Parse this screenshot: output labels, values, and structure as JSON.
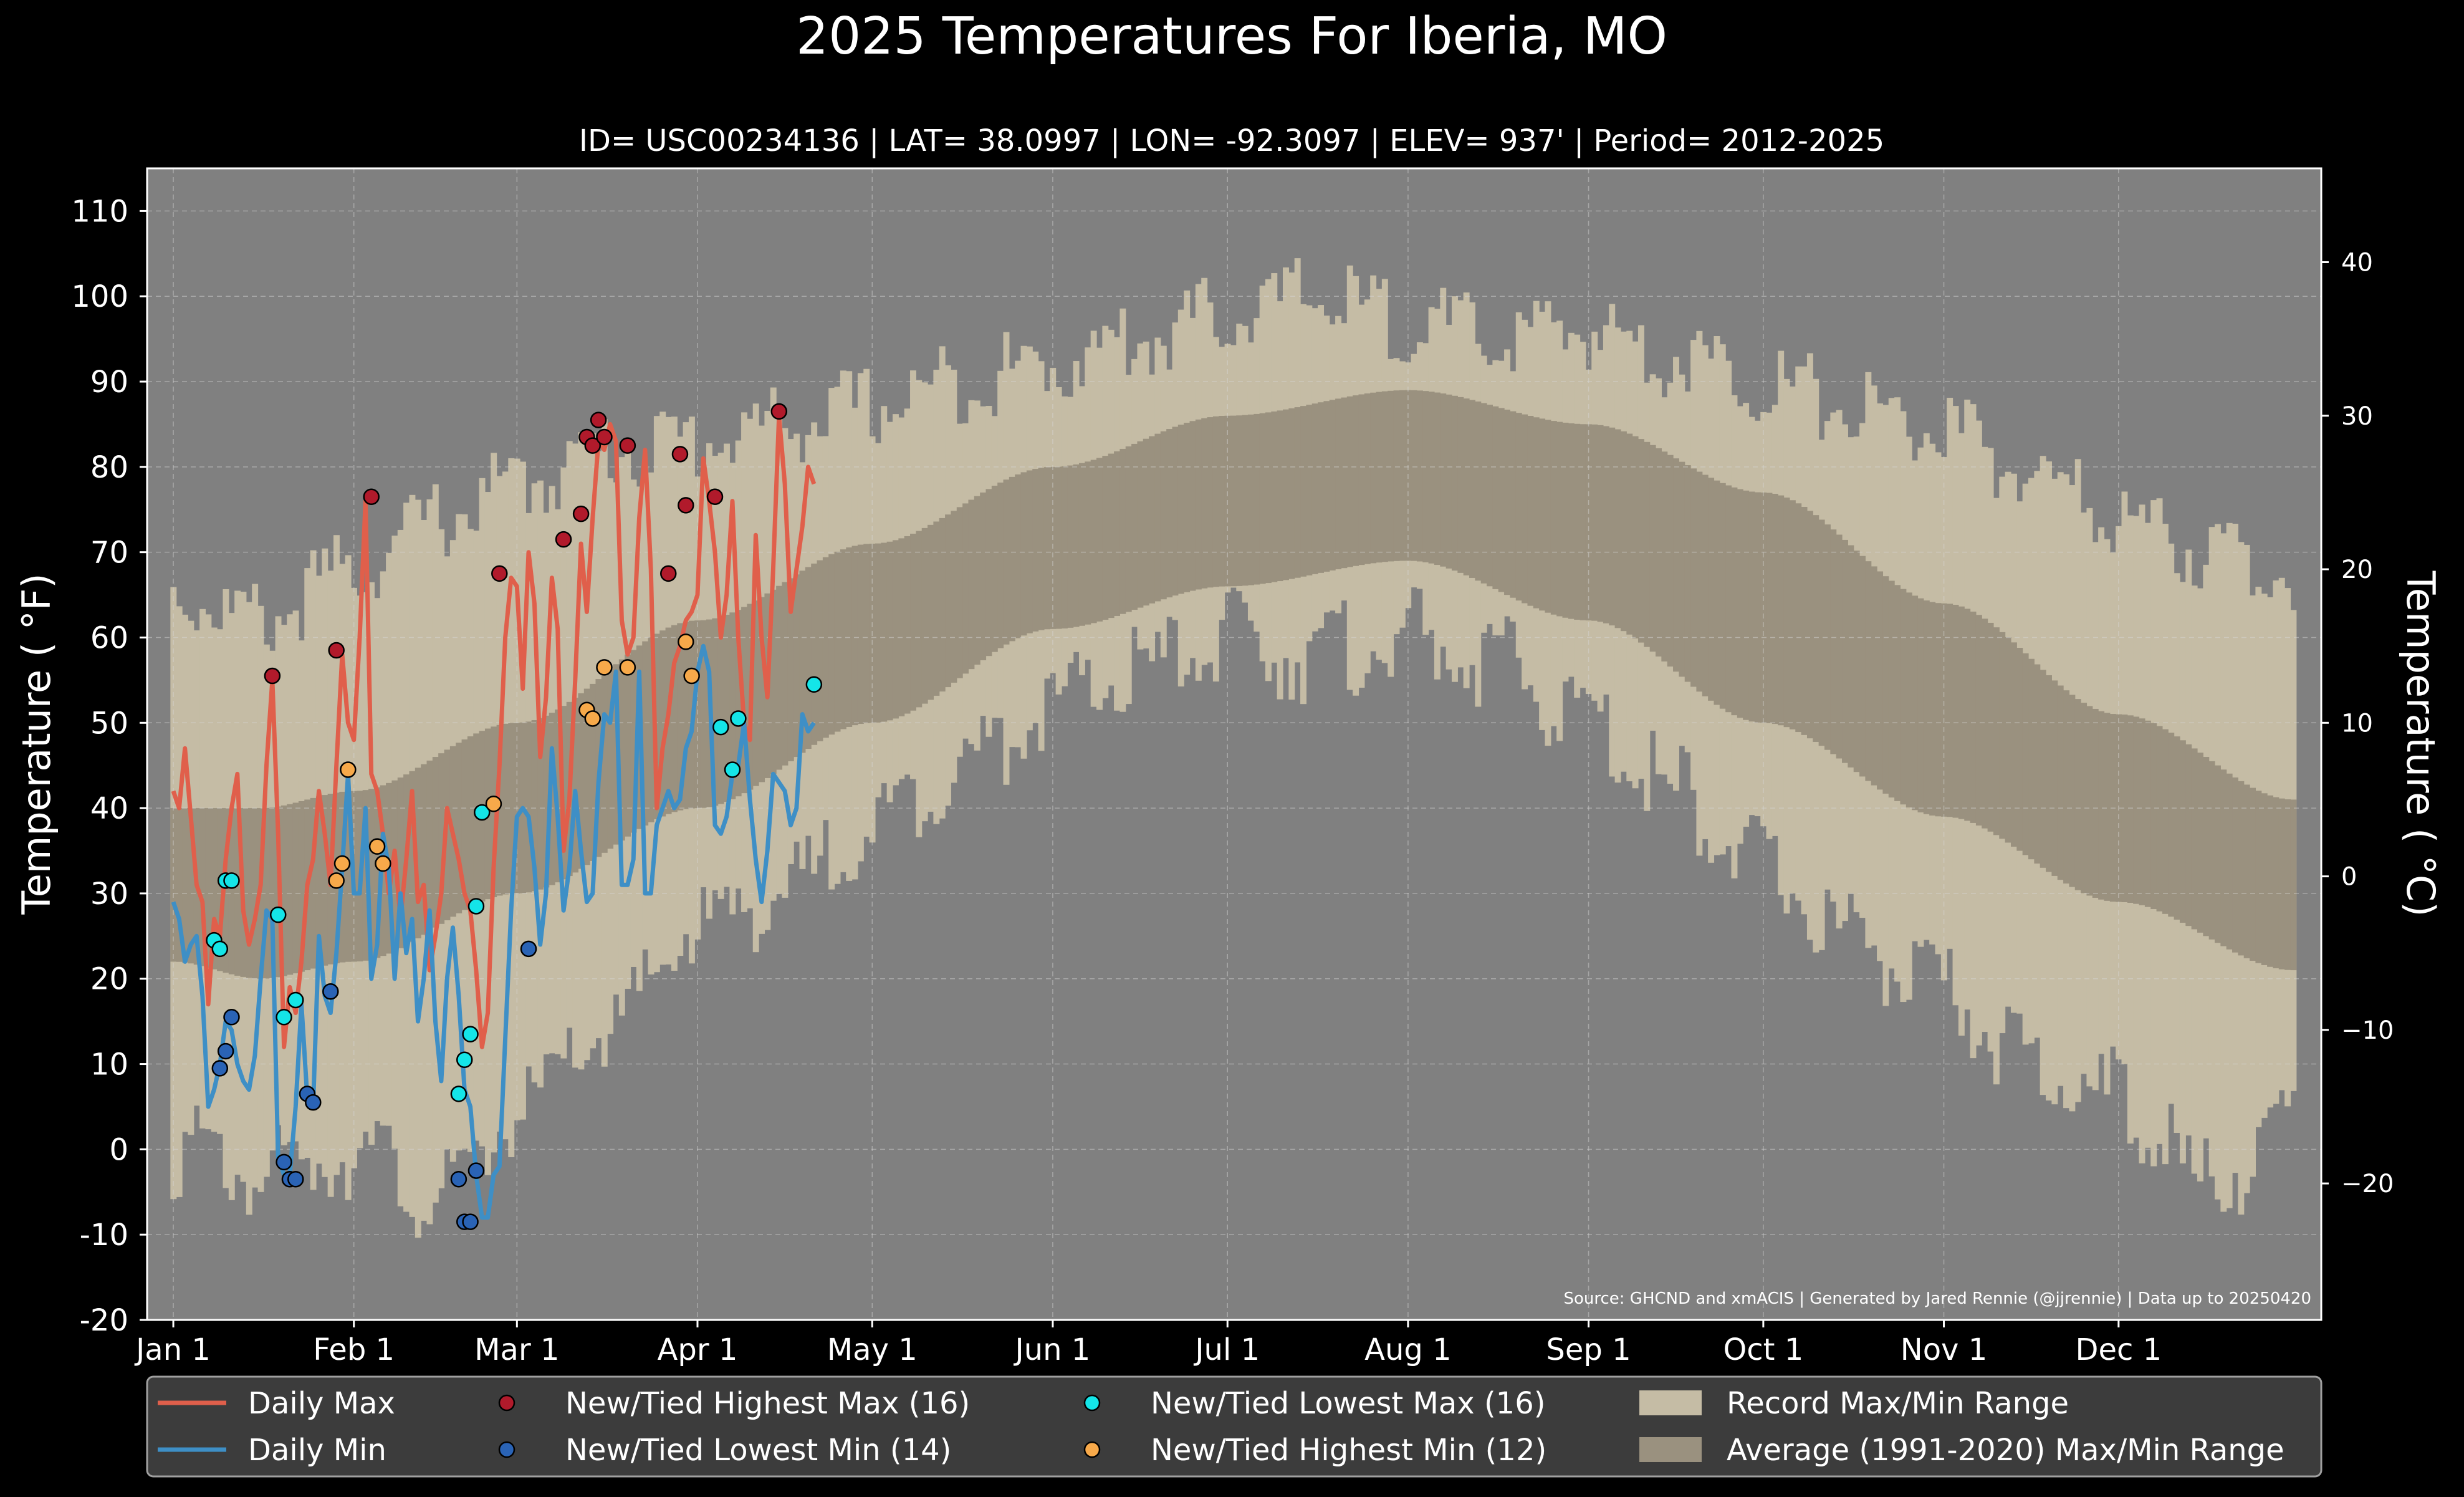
{
  "chart_data": {
    "type": "line",
    "title": "2025 Temperatures For Iberia, MO",
    "subtitle": "ID= USC00234136 | LAT= 38.0997 | LON= -92.3097 | ELEV= 937' | Period= 2012-2025",
    "ylabel_left": "Temperature ( °F)",
    "ylabel_right": "Temperature ( °C)",
    "source": "Source: GHCND and xmACIS | Generated by Jared Rennie (@jjrennie) | Data up to 20250420",
    "x_unit": "day of year (2025)",
    "xlim": [
      -4.5,
      368.8
    ],
    "ylim_f": [
      -20,
      115
    ],
    "yticks_f": [
      -20,
      -10,
      0,
      10,
      20,
      30,
      40,
      50,
      60,
      70,
      80,
      90,
      100,
      110
    ],
    "yticks_c": [
      -20,
      -10,
      0,
      10,
      20,
      30,
      40
    ],
    "xticks": [
      {
        "label": "Jan 1",
        "day": 0
      },
      {
        "label": "Feb 1",
        "day": 31
      },
      {
        "label": "Mar 1",
        "day": 59
      },
      {
        "label": "Apr 1",
        "day": 90
      },
      {
        "label": "May 1",
        "day": 120
      },
      {
        "label": "Jun 1",
        "day": 151
      },
      {
        "label": "Jul 1",
        "day": 181
      },
      {
        "label": "Aug 1",
        "day": 212
      },
      {
        "label": "Sep 1",
        "day": 243
      },
      {
        "label": "Oct 1",
        "day": 273
      },
      {
        "label": "Nov 1",
        "day": 304
      },
      {
        "label": "Dec 1",
        "day": 334
      }
    ],
    "grid": true,
    "legend_position": "bottom",
    "colors": {
      "background": "#000000",
      "plot_bg": "#808080",
      "record_band": "#c5bca5",
      "normal_band": "#9a917f",
      "daily_max": "#e05f4b",
      "daily_min": "#3e8fc6",
      "new_highest_max": "#b11a2b",
      "new_lowest_min": "#2a63b5",
      "new_lowest_max": "#14e5e8",
      "new_highest_min": "#f7a94a"
    },
    "legend": [
      {
        "key": "daily_max",
        "label": "Daily Max",
        "kind": "line"
      },
      {
        "key": "daily_min",
        "label": "Daily Min",
        "kind": "line"
      },
      {
        "key": "new_highest_max",
        "label": "New/Tied Highest Max (16)",
        "kind": "dot"
      },
      {
        "key": "new_lowest_min",
        "label": "New/Tied Lowest Min (14)",
        "kind": "dot"
      },
      {
        "key": "new_lowest_max",
        "label": "New/Tied Lowest Max (16)",
        "kind": "dot"
      },
      {
        "key": "new_highest_min",
        "label": "New/Tied Highest Min (12)",
        "kind": "dot"
      },
      {
        "key": "record_band",
        "label": "Record Max/Min Range",
        "kind": "box"
      },
      {
        "key": "normal_band",
        "label": "Average (1991-2020) Max/Min Range",
        "kind": "box"
      }
    ],
    "normals_max_knots": {
      "day": [
        0,
        15,
        31,
        59,
        90,
        120,
        151,
        181,
        212,
        243,
        273,
        304,
        334,
        364
      ],
      "value": [
        40,
        40,
        42,
        50,
        62,
        71,
        80,
        86,
        89,
        85,
        77,
        64,
        51,
        41
      ]
    },
    "normals_min_knots": {
      "day": [
        0,
        15,
        31,
        59,
        90,
        120,
        151,
        181,
        212,
        243,
        273,
        304,
        334,
        364
      ],
      "value": [
        22,
        20,
        22,
        30,
        40,
        50,
        61,
        66,
        69,
        62,
        50,
        39,
        29,
        21
      ]
    },
    "record_max_knots": {
      "day": [
        0,
        15,
        31,
        46,
        59,
        75,
        90,
        105,
        120,
        135,
        151,
        166,
        181,
        196,
        212,
        227,
        243,
        258,
        273,
        288,
        304,
        319,
        334,
        349,
        364
      ],
      "value": [
        65,
        62,
        68,
        74,
        78,
        82,
        83,
        85,
        87,
        90,
        92,
        95,
        98,
        100,
        97,
        95,
        96,
        93,
        90,
        87,
        84,
        79,
        74,
        70,
        68
      ]
    },
    "record_min_knots": {
      "day": [
        0,
        15,
        31,
        46,
        59,
        75,
        90,
        105,
        120,
        135,
        151,
        166,
        181,
        196,
        212,
        227,
        243,
        258,
        273,
        288,
        304,
        319,
        334,
        349,
        364
      ],
      "value": [
        0,
        -3,
        0,
        -6,
        4,
        14,
        26,
        30,
        38,
        45,
        52,
        56,
        60,
        58,
        60,
        57,
        50,
        42,
        33,
        25,
        18,
        10,
        6,
        -4,
        2
      ]
    },
    "daily_max": [
      42,
      40,
      47,
      39,
      31,
      29,
      17,
      27,
      25,
      34,
      40,
      44,
      28,
      24,
      27,
      31,
      45,
      55,
      37,
      12,
      19,
      16,
      22,
      31,
      34,
      42,
      37,
      31,
      45,
      58,
      50,
      48,
      60,
      76,
      44,
      42,
      37,
      30,
      35,
      27,
      34,
      42,
      29,
      31,
      21,
      25,
      30,
      40,
      37,
      34,
      30,
      28,
      21,
      12,
      16,
      33,
      45,
      60,
      67,
      66,
      54,
      70,
      64,
      46,
      53,
      67,
      61,
      35,
      41,
      55,
      71,
      63,
      74,
      83,
      82,
      85,
      83,
      62,
      58,
      60,
      74,
      82,
      68,
      40,
      47,
      51,
      57,
      59,
      62,
      63,
      65,
      81,
      76,
      70,
      60,
      65,
      76,
      60,
      50,
      48,
      72,
      60,
      53,
      68,
      86,
      78,
      63,
      68,
      73,
      80,
      78
    ],
    "daily_min": [
      29,
      27,
      22,
      24,
      25,
      18,
      5,
      7,
      10,
      15,
      14,
      10,
      8,
      7,
      11,
      20,
      28,
      27,
      -1,
      -3,
      -3,
      5,
      17,
      6,
      5,
      25,
      18,
      16,
      23,
      33,
      44,
      30,
      30,
      40,
      20,
      24,
      37,
      33,
      20,
      30,
      23,
      27,
      15,
      20,
      28,
      15,
      8,
      20,
      26,
      18,
      7,
      5,
      -3,
      -8,
      -8,
      -3,
      -2,
      13,
      28,
      39,
      40,
      39,
      33,
      24,
      30,
      47,
      39,
      28,
      33,
      42,
      35,
      29,
      30,
      43,
      51,
      50,
      56,
      31,
      31,
      34,
      56,
      30,
      30,
      38,
      40,
      42,
      40,
      41,
      47,
      49,
      56,
      59,
      56,
      38,
      37,
      39,
      44,
      45,
      50,
      41,
      34,
      29,
      35,
      44,
      43,
      42,
      38,
      40,
      51,
      49,
      50
    ],
    "new_highest_max": [
      {
        "day": 17,
        "value": 55.5
      },
      {
        "day": 28,
        "value": 58.5
      },
      {
        "day": 34,
        "value": 76.5
      },
      {
        "day": 56,
        "value": 67.5
      },
      {
        "day": 67,
        "value": 71.5
      },
      {
        "day": 70,
        "value": 74.5
      },
      {
        "day": 71,
        "value": 83.5
      },
      {
        "day": 72,
        "value": 82.5
      },
      {
        "day": 73,
        "value": 85.5
      },
      {
        "day": 74,
        "value": 83.5
      },
      {
        "day": 78,
        "value": 82.5
      },
      {
        "day": 85,
        "value": 67.5
      },
      {
        "day": 87,
        "value": 81.5
      },
      {
        "day": 88,
        "value": 75.5
      },
      {
        "day": 93,
        "value": 76.5
      },
      {
        "day": 104,
        "value": 86.5
      }
    ],
    "new_lowest_min": [
      {
        "day": 8,
        "value": 9.5
      },
      {
        "day": 9,
        "value": 11.5
      },
      {
        "day": 10,
        "value": 15.5
      },
      {
        "day": 19,
        "value": -1.5
      },
      {
        "day": 20,
        "value": -3.5
      },
      {
        "day": 21,
        "value": -3.5
      },
      {
        "day": 23,
        "value": 6.5
      },
      {
        "day": 24,
        "value": 5.5
      },
      {
        "day": 27,
        "value": 18.5
      },
      {
        "day": 49,
        "value": -3.5
      },
      {
        "day": 50,
        "value": -8.5
      },
      {
        "day": 51,
        "value": -8.5
      },
      {
        "day": 52,
        "value": -2.5
      },
      {
        "day": 61,
        "value": 23.5
      }
    ],
    "new_lowest_max": [
      {
        "day": 7,
        "value": 24.5
      },
      {
        "day": 8,
        "value": 23.5
      },
      {
        "day": 9,
        "value": 31.5
      },
      {
        "day": 10,
        "value": 31.5
      },
      {
        "day": 18,
        "value": 27.5
      },
      {
        "day": 19,
        "value": 15.5
      },
      {
        "day": 21,
        "value": 17.5
      },
      {
        "day": 49,
        "value": 6.5
      },
      {
        "day": 50,
        "value": 10.5
      },
      {
        "day": 51,
        "value": 13.5
      },
      {
        "day": 52,
        "value": 28.5
      },
      {
        "day": 53,
        "value": 39.5
      },
      {
        "day": 94,
        "value": 49.5
      },
      {
        "day": 96,
        "value": 44.5
      },
      {
        "day": 97,
        "value": 50.5
      },
      {
        "day": 110,
        "value": 54.5
      }
    ],
    "new_highest_min": [
      {
        "day": 28,
        "value": 31.5
      },
      {
        "day": 29,
        "value": 33.5
      },
      {
        "day": 30,
        "value": 44.5
      },
      {
        "day": 35,
        "value": 35.5
      },
      {
        "day": 36,
        "value": 33.5
      },
      {
        "day": 55,
        "value": 40.5
      },
      {
        "day": 71,
        "value": 51.5
      },
      {
        "day": 72,
        "value": 50.5
      },
      {
        "day": 74,
        "value": 56.5
      },
      {
        "day": 78,
        "value": 56.5
      },
      {
        "day": 88,
        "value": 59.5
      },
      {
        "day": 89,
        "value": 55.5
      }
    ]
  }
}
